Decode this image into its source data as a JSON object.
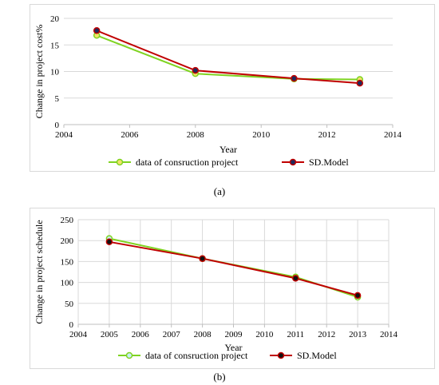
{
  "colors": {
    "green": "#7fd321",
    "red": "#c00000",
    "grid": "#d9d9d9",
    "axis": "#bfbfbf"
  },
  "chart_data": [
    {
      "type": "line",
      "xlabel": "Year",
      "ylabel": "Change in project cost%",
      "xlim": [
        2004,
        2014
      ],
      "ylim": [
        0,
        20
      ],
      "x_ticks": [
        2004,
        2006,
        2008,
        2010,
        2012,
        2014
      ],
      "y_ticks": [
        0,
        5,
        10,
        15,
        20
      ],
      "grid": true,
      "legend": "bottom",
      "series": [
        {
          "name": "data of consruction project",
          "color": "#7fd321",
          "marker_fill": "#f2e36b",
          "x": [
            2005,
            2008,
            2011,
            2013
          ],
          "y": [
            16.8,
            9.6,
            8.6,
            8.5
          ]
        },
        {
          "name": "SD.Model",
          "color": "#c00000",
          "marker_fill": "#1f2a5c",
          "x": [
            2005,
            2008,
            2011,
            2013
          ],
          "y": [
            17.7,
            10.2,
            8.7,
            7.8
          ]
        }
      ],
      "caption": "(a)"
    },
    {
      "type": "line",
      "xlabel": "Year",
      "ylabel": "Change in project schedule",
      "xlim": [
        2004,
        2014
      ],
      "ylim": [
        0,
        250
      ],
      "x_ticks": [
        2004,
        2005,
        2006,
        2007,
        2008,
        2009,
        2010,
        2011,
        2012,
        2013,
        2014
      ],
      "y_ticks": [
        0,
        50,
        100,
        150,
        200,
        250
      ],
      "grid": true,
      "legend": "bottom",
      "series": [
        {
          "name": "data of consruction project",
          "color": "#7fd321",
          "marker_fill": "#c8eef5",
          "x": [
            2005,
            2008,
            2011,
            2013
          ],
          "y": [
            205,
            157,
            113,
            65
          ]
        },
        {
          "name": "SD.Model",
          "color": "#c00000",
          "marker_fill": "#111111",
          "x": [
            2005,
            2008,
            2011,
            2013
          ],
          "y": [
            197,
            157,
            110,
            69
          ]
        }
      ],
      "caption": "(b)"
    }
  ]
}
